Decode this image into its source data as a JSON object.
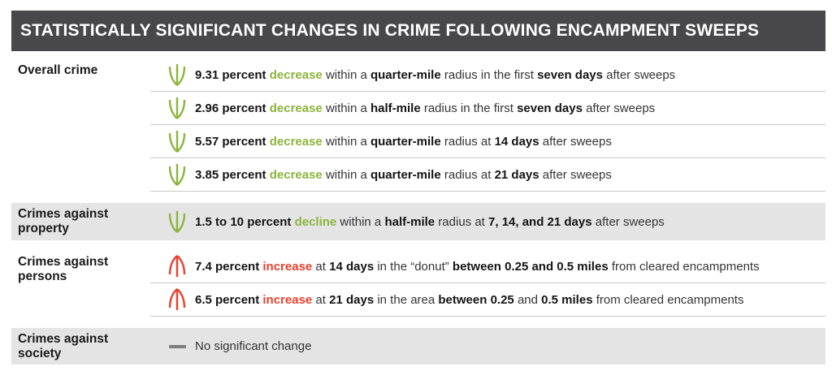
{
  "header": {
    "title": "STATISTICALLY SIGNIFICANT CHANGES IN CRIME FOLLOWING ENCAMPMENT SWEEPS"
  },
  "colors": {
    "header_bg": "#48484a",
    "band_bg": "#e4e4e4",
    "separator": "#c8c8c8",
    "green": "#8cb43c",
    "red": "#e8402d",
    "dash": "#7d7d7d"
  },
  "sections": [
    {
      "label": "Overall crime",
      "slug": "overall",
      "shaded": false,
      "rows": [
        {
          "icon": "decrease-arrow-icon",
          "segments": [
            [
              "9.31 percent ",
              "b"
            ],
            [
              "decrease",
              "g"
            ],
            [
              " within a ",
              "n"
            ],
            [
              "quarter-mile",
              "b"
            ],
            [
              " radius in the first ",
              "n"
            ],
            [
              "seven days",
              "b"
            ],
            [
              " after sweeps",
              "n"
            ]
          ]
        },
        {
          "icon": "decrease-arrow-icon",
          "segments": [
            [
              "2.96 percent ",
              "b"
            ],
            [
              "decrease",
              "g"
            ],
            [
              " within a ",
              "n"
            ],
            [
              "half-mile",
              "b"
            ],
            [
              " radius in the first ",
              "n"
            ],
            [
              "seven days",
              "b"
            ],
            [
              " after sweeps",
              "n"
            ]
          ]
        },
        {
          "icon": "decrease-arrow-icon",
          "segments": [
            [
              "5.57 percent ",
              "b"
            ],
            [
              "decrease",
              "g"
            ],
            [
              " within a ",
              "n"
            ],
            [
              "quarter-mile",
              "b"
            ],
            [
              " radius at ",
              "n"
            ],
            [
              "14 days",
              "b"
            ],
            [
              " after sweeps",
              "n"
            ]
          ]
        },
        {
          "icon": "decrease-arrow-icon",
          "segments": [
            [
              "3.85 percent ",
              "b"
            ],
            [
              "decrease",
              "g"
            ],
            [
              " within a ",
              "n"
            ],
            [
              "quarter-mile",
              "b"
            ],
            [
              " radius at ",
              "n"
            ],
            [
              "21 days",
              "b"
            ],
            [
              " after sweeps",
              "n"
            ]
          ]
        }
      ]
    },
    {
      "label": "Crimes against property",
      "slug": "property",
      "shaded": true,
      "rows": [
        {
          "icon": "decrease-arrow-icon",
          "segments": [
            [
              "1.5 to 10 percent ",
              "b"
            ],
            [
              "decline",
              "g"
            ],
            [
              " within a ",
              "n"
            ],
            [
              "half-mile",
              "b"
            ],
            [
              " radius at ",
              "n"
            ],
            [
              "7, 14, and 21 days",
              "b"
            ],
            [
              " after sweeps",
              "n"
            ]
          ]
        }
      ]
    },
    {
      "label": "Crimes against persons",
      "slug": "persons",
      "shaded": false,
      "rows": [
        {
          "icon": "increase-arrow-icon",
          "segments": [
            [
              "7.4 percent ",
              "b"
            ],
            [
              "increase",
              "r"
            ],
            [
              " at ",
              "n"
            ],
            [
              "14 days",
              "b"
            ],
            [
              " in the “donut” ",
              "n"
            ],
            [
              "between 0.25 and 0.5 miles",
              "b"
            ],
            [
              " from cleared encampments",
              "n"
            ]
          ]
        },
        {
          "icon": "increase-arrow-icon",
          "segments": [
            [
              "6.5 percent ",
              "b"
            ],
            [
              "increase",
              "r"
            ],
            [
              " at ",
              "n"
            ],
            [
              "21 days",
              "b"
            ],
            [
              " in the area ",
              "n"
            ],
            [
              "between 0.25",
              "b"
            ],
            [
              " and ",
              "n"
            ],
            [
              "0.5 miles",
              "b"
            ],
            [
              " from cleared encampments",
              "n"
            ]
          ]
        }
      ]
    },
    {
      "label": "Crimes against society",
      "slug": "society",
      "shaded": true,
      "rows": [
        {
          "icon": "no-change-dash-icon",
          "segments": [
            [
              "No significant change",
              "n"
            ]
          ]
        }
      ]
    }
  ]
}
